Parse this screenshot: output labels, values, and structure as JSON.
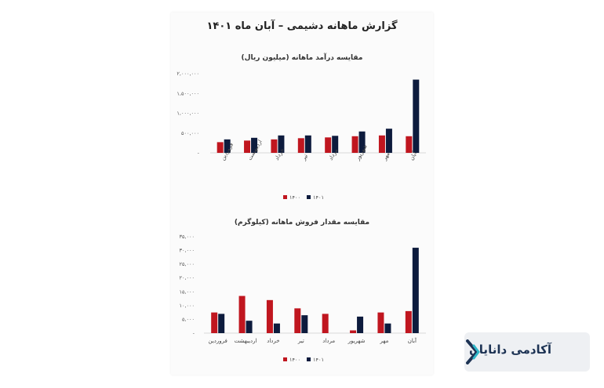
{
  "report_title": "گزارش ماهانه دشیمی – آبان ماه ۱۴۰۱",
  "brand": {
    "name": "آکادمی دانایان"
  },
  "colors": {
    "series_1400": "#c0161f",
    "series_1401": "#0d1b3d",
    "axis": "#cccccc"
  },
  "chart_data": [
    {
      "type": "bar",
      "title": "مقایسه درآمد ماهانه (میلیون ریال)",
      "categories": [
        "آبان",
        "مهر",
        "شهریور",
        "مرداد",
        "تیر",
        "خرداد",
        "اردیبهشت",
        "فروردین"
      ],
      "series": [
        {
          "name": "۱۴۰۰",
          "values": [
            420000,
            440000,
            420000,
            390000,
            370000,
            340000,
            310000,
            270000
          ]
        },
        {
          "name": "۱۴۰۱",
          "values": [
            1850000,
            610000,
            540000,
            430000,
            440000,
            440000,
            380000,
            340000
          ]
        }
      ],
      "yticks": [
        "۲,۰۰۰,۰۰۰",
        "۱,۵۰۰,۰۰۰",
        "۱,۰۰۰,۰۰۰",
        "۵۰۰,۰۰۰",
        "-"
      ],
      "ylim": [
        0,
        2000000
      ],
      "legend_position": "bottom"
    },
    {
      "type": "bar",
      "title": "مقایسه مقدار فروش ماهانه (کیلوگرم)",
      "categories": [
        "آبان",
        "مهر",
        "شهریور",
        "مرداد",
        "تیر",
        "خرداد",
        "اردیبهشت",
        "فروردین"
      ],
      "series": [
        {
          "name": "۱۴۰۰",
          "values": [
            8000,
            7500,
            1000,
            7000,
            9000,
            12000,
            13500,
            7500
          ]
        },
        {
          "name": "۱۴۰۱",
          "values": [
            31000,
            3500,
            6000,
            0,
            6500,
            3500,
            4500,
            7000
          ]
        }
      ],
      "yticks": [
        "۳۵,۰۰۰",
        "۳۰,۰۰۰",
        "۲۵,۰۰۰",
        "۲۰,۰۰۰",
        "۱۵,۰۰۰",
        "۱۰,۰۰۰",
        "۵,۰۰۰",
        "-"
      ],
      "ylim": [
        0,
        35000
      ],
      "legend_position": "bottom"
    }
  ]
}
